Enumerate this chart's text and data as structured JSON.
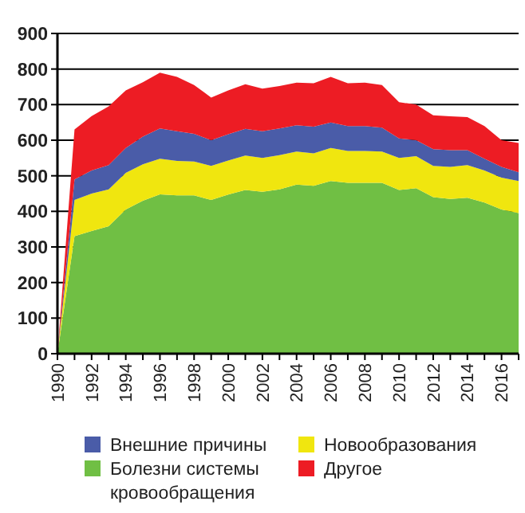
{
  "chart_data": {
    "type": "area",
    "stacked": true,
    "x": [
      1990,
      1991,
      1992,
      1993,
      1994,
      1995,
      1996,
      1997,
      1998,
      1999,
      2000,
      2001,
      2002,
      2003,
      2004,
      2005,
      2006,
      2007,
      2008,
      2009,
      2010,
      2011,
      2012,
      2013,
      2014,
      2015,
      2016,
      2017
    ],
    "series": [
      {
        "name": "Болезни системы кровообращения",
        "color": "#70bf44",
        "values": [
          0,
          330,
          345,
          358,
          405,
          430,
          448,
          445,
          445,
          432,
          447,
          460,
          455,
          462,
          475,
          472,
          485,
          480,
          480,
          480,
          460,
          465,
          440,
          435,
          438,
          425,
          405,
          395
        ]
      },
      {
        "name": "Новообразования",
        "color": "#f0e60f",
        "values": [
          0,
          102,
          105,
          104,
          103,
          102,
          100,
          97,
          95,
          96,
          96,
          97,
          95,
          96,
          93,
          91,
          93,
          90,
          90,
          88,
          90,
          90,
          88,
          90,
          92,
          90,
          90,
          90
        ]
      },
      {
        "name": "Внешние причины",
        "color": "#4a5ca8",
        "values": [
          0,
          58,
          65,
          68,
          70,
          78,
          85,
          83,
          78,
          72,
          74,
          75,
          75,
          75,
          74,
          75,
          72,
          70,
          70,
          67,
          55,
          45,
          47,
          47,
          42,
          33,
          30,
          25
        ]
      },
      {
        "name": "Другое",
        "color": "#ed1c24",
        "values": [
          0,
          140,
          153,
          165,
          162,
          153,
          157,
          153,
          137,
          120,
          123,
          125,
          120,
          119,
          120,
          122,
          128,
          120,
          122,
          120,
          102,
          100,
          95,
          95,
          93,
          92,
          75,
          82
        ]
      }
    ],
    "xlim": [
      1990,
      2017
    ],
    "xticks": [
      1990,
      {
        "value": 1991,
        "label": null
      },
      1992,
      {
        "value": 1993,
        "label": null
      },
      1994,
      {
        "value": 1995,
        "label": null
      },
      1996,
      {
        "value": 1997,
        "label": null
      },
      1998,
      {
        "value": 1999,
        "label": null
      },
      2000,
      {
        "value": 2001,
        "label": null
      },
      2002,
      {
        "value": 2003,
        "label": null
      },
      2004,
      {
        "value": 2005,
        "label": null
      },
      2006,
      {
        "value": 2007,
        "label": null
      },
      2008,
      {
        "value": 2009,
        "label": null
      },
      2010,
      {
        "value": 2011,
        "label": null
      },
      2012,
      {
        "value": 2013,
        "label": null
      },
      2014,
      {
        "value": 2015,
        "label": null
      },
      2016,
      {
        "value": 2017,
        "label": null
      }
    ],
    "ylim": [
      0,
      900
    ],
    "yticks": [
      0,
      100,
      200,
      300,
      400,
      500,
      600,
      700,
      800,
      900
    ],
    "grid": "y",
    "legend": "bottom"
  }
}
